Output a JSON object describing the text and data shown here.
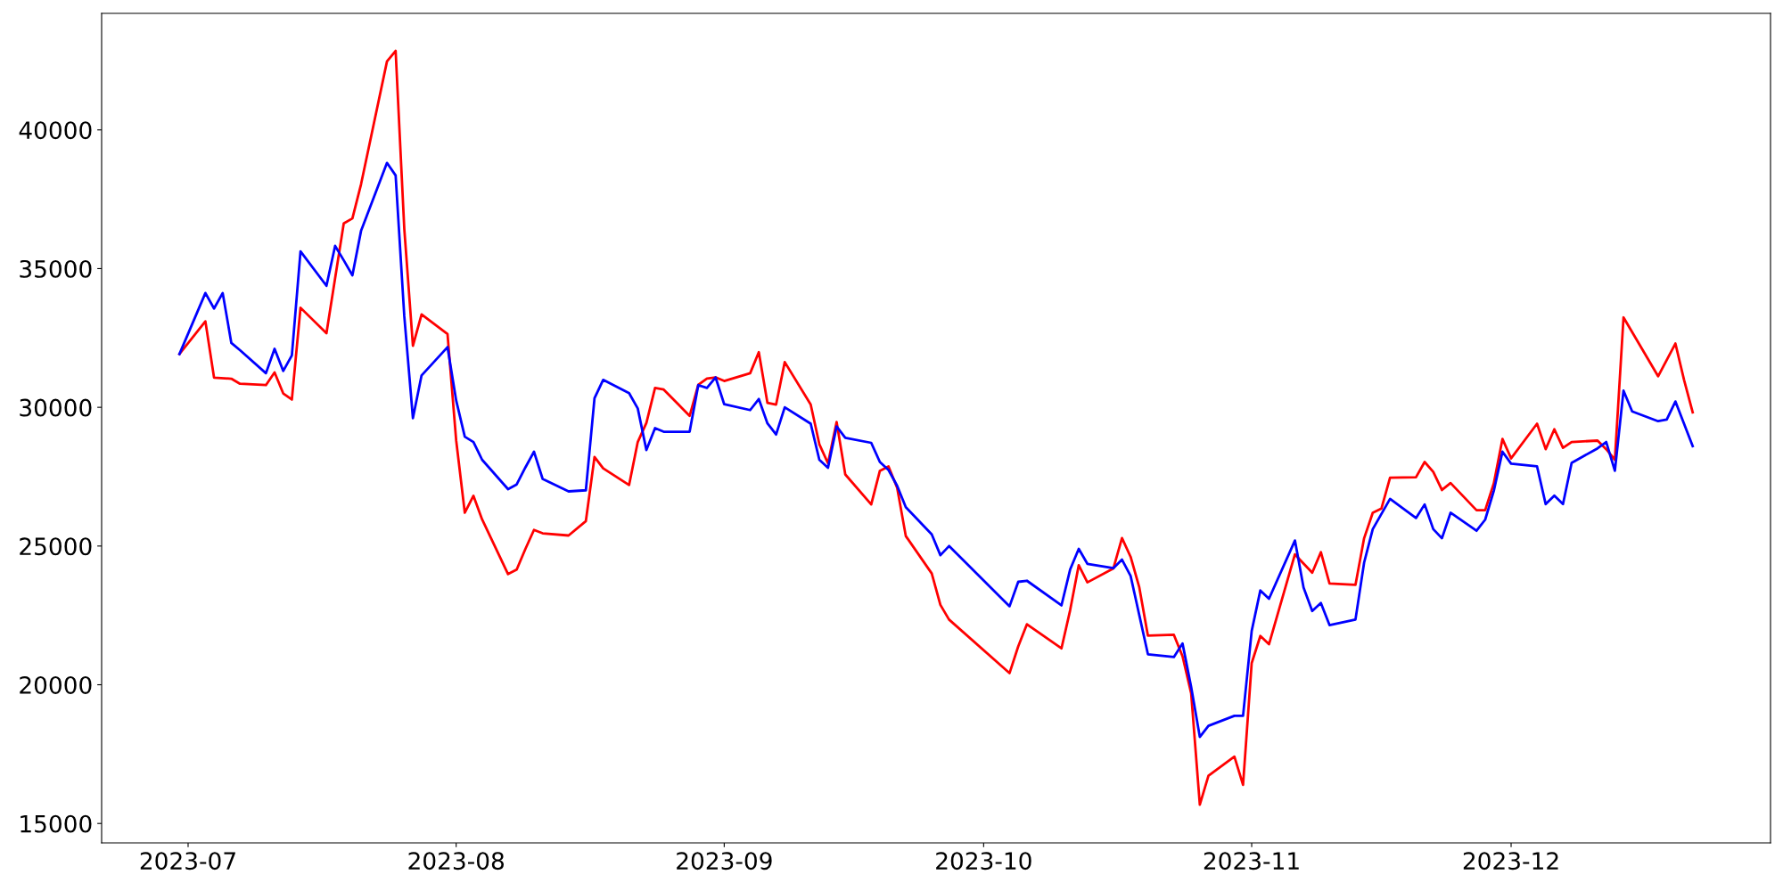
{
  "chart_data": {
    "type": "line",
    "xlim": [
      "2023-06-21",
      "2023-12-31"
    ],
    "ylim": [
      14300,
      44200
    ],
    "xticks": [
      {
        "value": "2023-07-01",
        "label": "2023-07"
      },
      {
        "value": "2023-08-01",
        "label": "2023-08"
      },
      {
        "value": "2023-09-01",
        "label": "2023-09"
      },
      {
        "value": "2023-10-01",
        "label": "2023-10"
      },
      {
        "value": "2023-11-01",
        "label": "2023-11"
      },
      {
        "value": "2023-12-01",
        "label": "2023-12"
      }
    ],
    "yticks": [
      15000,
      20000,
      25000,
      30000,
      35000,
      40000
    ],
    "grid": false,
    "legend": false,
    "marker": "none",
    "line_style": "solid",
    "series": [
      {
        "color": "#ff0000",
        "x": [
          "2023-06-30",
          "2023-07-03",
          "2023-07-04",
          "2023-07-06",
          "2023-07-07",
          "2023-07-10",
          "2023-07-11",
          "2023-07-12",
          "2023-07-13",
          "2023-07-14",
          "2023-07-17",
          "2023-07-19",
          "2023-07-20",
          "2023-07-21",
          "2023-07-24",
          "2023-07-25",
          "2023-07-26",
          "2023-07-27",
          "2023-07-28",
          "2023-07-31",
          "2023-08-01",
          "2023-08-02",
          "2023-08-03",
          "2023-08-04",
          "2023-08-07",
          "2023-08-08",
          "2023-08-09",
          "2023-08-10",
          "2023-08-11",
          "2023-08-14",
          "2023-08-16",
          "2023-08-17",
          "2023-08-18",
          "2023-08-21",
          "2023-08-22",
          "2023-08-23",
          "2023-08-24",
          "2023-08-25",
          "2023-08-28",
          "2023-08-29",
          "2023-08-30",
          "2023-08-31",
          "2023-09-01",
          "2023-09-04",
          "2023-09-05",
          "2023-09-06",
          "2023-09-07",
          "2023-09-08",
          "2023-09-11",
          "2023-09-12",
          "2023-09-13",
          "2023-09-14",
          "2023-09-15",
          "2023-09-18",
          "2023-09-19",
          "2023-09-20",
          "2023-09-21",
          "2023-09-22",
          "2023-09-25",
          "2023-09-26",
          "2023-09-27",
          "2023-10-04",
          "2023-10-05",
          "2023-10-06",
          "2023-10-10",
          "2023-10-11",
          "2023-10-12",
          "2023-10-13",
          "2023-10-16",
          "2023-10-17",
          "2023-10-18",
          "2023-10-19",
          "2023-10-20",
          "2023-10-23",
          "2023-10-24",
          "2023-10-25",
          "2023-10-26",
          "2023-10-27",
          "2023-10-30",
          "2023-10-31",
          "2023-11-01",
          "2023-11-02",
          "2023-11-03",
          "2023-11-06",
          "2023-11-08",
          "2023-11-09",
          "2023-11-10",
          "2023-11-13",
          "2023-11-14",
          "2023-11-15",
          "2023-11-16",
          "2023-11-17",
          "2023-11-20",
          "2023-11-21",
          "2023-11-22",
          "2023-11-23",
          "2023-11-24",
          "2023-11-27",
          "2023-11-28",
          "2023-11-29",
          "2023-11-30",
          "2023-12-01",
          "2023-12-04",
          "2023-12-05",
          "2023-12-06",
          "2023-12-07",
          "2023-12-08",
          "2023-12-11",
          "2023-12-12",
          "2023-12-13",
          "2023-12-14",
          "2023-12-18",
          "2023-12-20",
          "2023-12-21",
          "2023-12-22"
        ],
        "values": [
          31920,
          33100,
          31070,
          31030,
          30850,
          30800,
          31260,
          30500,
          30280,
          33590,
          32670,
          36630,
          36810,
          38040,
          42470,
          42850,
          36440,
          32220,
          33350,
          32640,
          28810,
          26200,
          26810,
          25960,
          23990,
          24150,
          24890,
          25580,
          25460,
          25380,
          25900,
          28210,
          27800,
          27200,
          28750,
          29440,
          30700,
          30640,
          29690,
          30810,
          31040,
          31080,
          30950,
          31230,
          31990,
          30160,
          30100,
          31630,
          30100,
          28670,
          27980,
          29470,
          27580,
          26500,
          27710,
          27870,
          27100,
          25360,
          24010,
          22880,
          22350,
          20420,
          21380,
          22180,
          21310,
          22680,
          24310,
          23690,
          24190,
          25290,
          24610,
          23510,
          21770,
          21800,
          21030,
          19690,
          15680,
          16720,
          17410,
          16390,
          20780,
          21760,
          21460,
          24700,
          24040,
          24780,
          23650,
          23600,
          25280,
          26200,
          26350,
          27460,
          27480,
          28030,
          27670,
          27020,
          27270,
          26290,
          26290,
          27260,
          28860,
          28160,
          29410,
          28490,
          29210,
          28540,
          28750,
          28800,
          28490,
          28110,
          33240,
          31120,
          32300,
          30990,
          29820
        ]
      },
      {
        "color": "#0000ff",
        "x": [
          "2023-06-30",
          "2023-07-03",
          "2023-07-04",
          "2023-07-05",
          "2023-07-06",
          "2023-07-07",
          "2023-07-10",
          "2023-07-11",
          "2023-07-12",
          "2023-07-13",
          "2023-07-14",
          "2023-07-17",
          "2023-07-18",
          "2023-07-19",
          "2023-07-20",
          "2023-07-21",
          "2023-07-24",
          "2023-07-25",
          "2023-07-26",
          "2023-07-27",
          "2023-07-28",
          "2023-07-31",
          "2023-08-01",
          "2023-08-02",
          "2023-08-03",
          "2023-08-04",
          "2023-08-07",
          "2023-08-08",
          "2023-08-09",
          "2023-08-10",
          "2023-08-11",
          "2023-08-14",
          "2023-08-16",
          "2023-08-17",
          "2023-08-18",
          "2023-08-21",
          "2023-08-22",
          "2023-08-23",
          "2023-08-24",
          "2023-08-25",
          "2023-08-28",
          "2023-08-29",
          "2023-08-30",
          "2023-08-31",
          "2023-09-01",
          "2023-09-04",
          "2023-09-05",
          "2023-09-06",
          "2023-09-07",
          "2023-09-08",
          "2023-09-11",
          "2023-09-12",
          "2023-09-13",
          "2023-09-14",
          "2023-09-15",
          "2023-09-18",
          "2023-09-19",
          "2023-09-20",
          "2023-09-21",
          "2023-09-22",
          "2023-09-25",
          "2023-09-26",
          "2023-09-27",
          "2023-10-04",
          "2023-10-05",
          "2023-10-06",
          "2023-10-10",
          "2023-10-11",
          "2023-10-12",
          "2023-10-13",
          "2023-10-16",
          "2023-10-17",
          "2023-10-18",
          "2023-10-19",
          "2023-10-20",
          "2023-10-23",
          "2023-10-24",
          "2023-10-25",
          "2023-10-26",
          "2023-10-27",
          "2023-10-30",
          "2023-10-31",
          "2023-11-01",
          "2023-11-02",
          "2023-11-03",
          "2023-11-06",
          "2023-11-07",
          "2023-11-08",
          "2023-11-09",
          "2023-11-10",
          "2023-11-13",
          "2023-11-14",
          "2023-11-15",
          "2023-11-17",
          "2023-11-20",
          "2023-11-21",
          "2023-11-22",
          "2023-11-23",
          "2023-11-24",
          "2023-11-27",
          "2023-11-28",
          "2023-11-29",
          "2023-11-30",
          "2023-12-01",
          "2023-12-04",
          "2023-12-05",
          "2023-12-06",
          "2023-12-07",
          "2023-12-08",
          "2023-12-11",
          "2023-12-12",
          "2023-12-13",
          "2023-12-14",
          "2023-12-15",
          "2023-12-18",
          "2023-12-19",
          "2023-12-20",
          "2023-12-22"
        ],
        "values": [
          31920,
          34120,
          33560,
          34120,
          32320,
          32060,
          31230,
          32110,
          31310,
          31870,
          35620,
          34380,
          35820,
          35300,
          34760,
          36360,
          38810,
          38360,
          33290,
          29610,
          31150,
          32170,
          30250,
          28940,
          28750,
          28110,
          27050,
          27220,
          27830,
          28400,
          27420,
          26970,
          27010,
          30330,
          30990,
          30510,
          29960,
          28460,
          29250,
          29120,
          29120,
          30800,
          30700,
          31080,
          30110,
          29900,
          30300,
          29420,
          29020,
          30000,
          29410,
          28110,
          27820,
          29310,
          28900,
          28720,
          28030,
          27740,
          27170,
          26400,
          25420,
          24670,
          25000,
          22830,
          23710,
          23750,
          22860,
          24150,
          24900,
          24360,
          24200,
          24510,
          23920,
          22510,
          21100,
          21000,
          21490,
          19920,
          18120,
          18520,
          18880,
          18880,
          21940,
          23400,
          23100,
          25200,
          23500,
          22660,
          22950,
          22150,
          22350,
          24400,
          25610,
          26700,
          26010,
          26500,
          25610,
          25280,
          26200,
          25550,
          25950,
          26990,
          28400,
          27970,
          27870,
          26510,
          26820,
          26510,
          28000,
          28520,
          28750,
          27710,
          30600,
          29850,
          29500,
          29560,
          30210,
          28600
        ]
      }
    ]
  }
}
